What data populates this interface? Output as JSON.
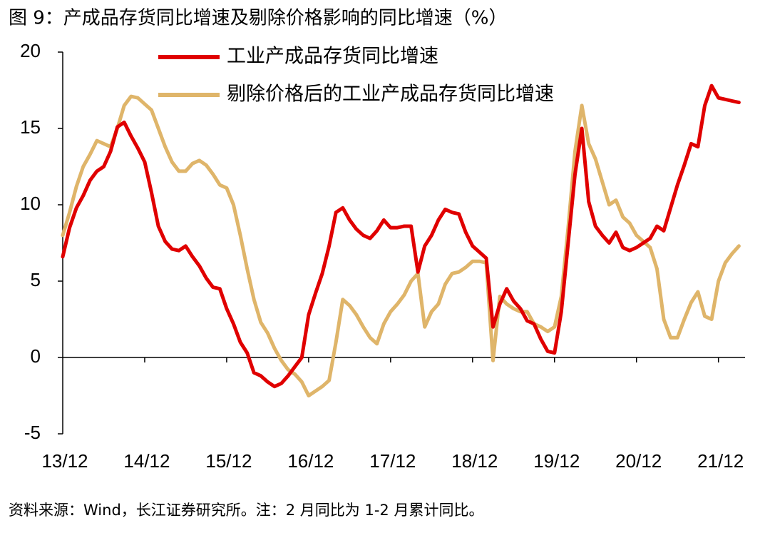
{
  "chart_data": {
    "type": "line",
    "title": "图 9：产成品存货同比增速及剔除价格影响的同比增速（%）",
    "source": "资料来源：Wind，长江证券研究所。注：2 月同比为 1-2 月累计同比。",
    "categories": [
      "13/12",
      null,
      null,
      null,
      null,
      null,
      null,
      null,
      null,
      null,
      null,
      null,
      "14/12",
      null,
      null,
      null,
      null,
      null,
      null,
      null,
      null,
      null,
      null,
      null,
      "15/12",
      null,
      null,
      null,
      null,
      null,
      null,
      null,
      null,
      null,
      null,
      null,
      "16/12",
      null,
      null,
      null,
      null,
      null,
      null,
      null,
      null,
      null,
      null,
      null,
      "17/12",
      null,
      null,
      null,
      null,
      null,
      null,
      null,
      null,
      null,
      null,
      null,
      "18/12",
      null,
      null,
      null,
      null,
      null,
      null,
      null,
      null,
      null,
      null,
      null,
      "19/12",
      null,
      null,
      null,
      null,
      null,
      null,
      null,
      null,
      null,
      null,
      null,
      "20/12",
      null,
      null,
      null,
      null,
      null,
      null,
      null,
      null,
      null,
      null,
      null,
      "21/12",
      null,
      null,
      null
    ],
    "series": [
      {
        "name": "工业产成品存货同比增速",
        "color": "#e00000",
        "values": [
          6.6,
          8.5,
          9.8,
          10.6,
          11.6,
          12.2,
          12.5,
          13.5,
          15.1,
          15.4,
          14.5,
          13.7,
          12.8,
          10.8,
          8.6,
          7.6,
          7.1,
          7.0,
          7.3,
          6.6,
          6.0,
          5.2,
          4.6,
          4.5,
          3.2,
          2.2,
          1.0,
          0.3,
          -1.0,
          -1.2,
          -1.6,
          -1.9,
          -1.7,
          -1.2,
          -0.6,
          0,
          2.8,
          4.2,
          5.5,
          7.3,
          9.5,
          9.8,
          9.0,
          8.4,
          8.0,
          7.8,
          8.3,
          9.0,
          8.5,
          8.5,
          8.6,
          8.6,
          5.6,
          7.3,
          8.0,
          9.0,
          9.7,
          9.5,
          9.4,
          8.2,
          7.3,
          6.9,
          6.5,
          2.0,
          3.5,
          4.5,
          3.7,
          3.2,
          2.4,
          2.2,
          1.2,
          0.4,
          0.3,
          3.0,
          7.5,
          12,
          15,
          10.2,
          8.6,
          8.0,
          7.5,
          8.2,
          7.2,
          7.0,
          7.2,
          7.5,
          7.8,
          8.6,
          8.3,
          9.8,
          11.3,
          12.6,
          14.0,
          13.8,
          16.5,
          17.8,
          17.0,
          16.9,
          16.8,
          16.7
        ]
      },
      {
        "name": "剔除价格后的工业产成品存货同比增速",
        "color": "#dfb56a",
        "values": [
          8.0,
          9.5,
          11.2,
          12.5,
          13.3,
          14.2,
          14.0,
          13.8,
          15.0,
          16.5,
          17.1,
          17.0,
          16.6,
          16.2,
          15.0,
          13.8,
          12.8,
          12.2,
          12.2,
          12.7,
          12.9,
          12.6,
          12.0,
          11.3,
          11.1,
          10.0,
          8.0,
          5.8,
          3.8,
          2.3,
          1.6,
          0.6,
          -0.2,
          -0.8,
          -1.1,
          -1.6,
          -2.5,
          -2.2,
          -1.9,
          -1.5,
          1.0,
          3.8,
          3.4,
          2.8,
          2.0,
          1.3,
          0.9,
          2.2,
          3.0,
          3.5,
          4.1,
          5.0,
          5.5,
          2.0,
          3.0,
          3.5,
          4.8,
          5.5,
          5.6,
          5.9,
          6.3,
          6.3,
          6.2,
          -0.2,
          4.0,
          3.5,
          3.2,
          3.0,
          3.0,
          2.2,
          2.0,
          1.7,
          2.0,
          4.0,
          8.5,
          13.5,
          16.5,
          14.0,
          13.0,
          11.5,
          10.0,
          10.3,
          9.2,
          8.8,
          8.0,
          7.6,
          7.2,
          5.8,
          2.5,
          1.3,
          1.3,
          2.5,
          3.6,
          4.3,
          2.7,
          2.5,
          5.0,
          6.2,
          6.8,
          7.3
        ]
      }
    ],
    "ylim": [
      -5,
      20
    ],
    "yticks": [
      -5,
      0,
      5,
      10,
      15,
      20
    ]
  }
}
